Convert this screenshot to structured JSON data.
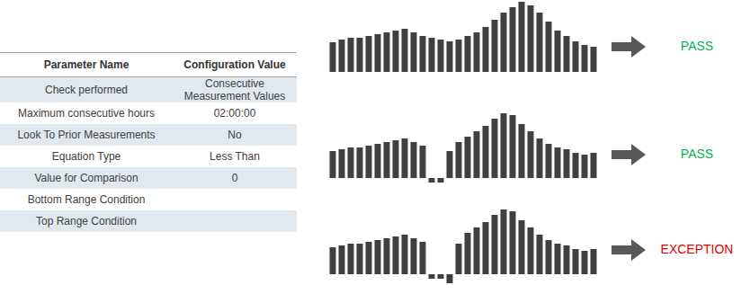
{
  "table": {
    "header": [
      "Parameter Name",
      "Configuration Value"
    ],
    "rows": [
      [
        "Check performed",
        "Consecutive Measurement Values"
      ],
      [
        "Maximum consecutive hours",
        "02:00:00"
      ],
      [
        "Look To Prior Measurements",
        "No"
      ],
      [
        "Equation Type",
        "Less Than"
      ],
      [
        "Value for Comparison",
        "0"
      ],
      [
        "Bottom Range Condition",
        null
      ],
      [
        "Top Range Condition",
        null
      ]
    ]
  },
  "chart_data": [
    {
      "type": "bar",
      "color": "#404040",
      "ylim": [
        -12,
        80
      ],
      "tick_labels": false,
      "grid": false,
      "values": [
        33,
        36,
        38,
        38,
        40,
        42,
        44,
        46,
        48,
        44,
        40,
        38,
        36,
        34,
        36,
        40,
        44,
        50,
        58,
        66,
        72,
        78,
        74,
        66,
        56,
        46,
        40,
        34,
        30,
        28
      ]
    },
    {
      "type": "bar",
      "color": "#404040",
      "ylim": [
        -12,
        80
      ],
      "tick_labels": false,
      "grid": false,
      "values": [
        30,
        32,
        34,
        34,
        36,
        38,
        40,
        42,
        44,
        40,
        36,
        -5,
        -5,
        30,
        40,
        46,
        52,
        58,
        66,
        72,
        70,
        60,
        52,
        44,
        38,
        34,
        32,
        28,
        26,
        28
      ]
    },
    {
      "type": "bar",
      "color": "#404040",
      "ylim": [
        -12,
        80
      ],
      "tick_labels": false,
      "grid": false,
      "values": [
        30,
        32,
        34,
        34,
        36,
        38,
        40,
        42,
        44,
        40,
        36,
        -5,
        -5,
        -10,
        34,
        46,
        52,
        58,
        66,
        72,
        70,
        60,
        52,
        44,
        38,
        34,
        32,
        28,
        26,
        28
      ]
    }
  ],
  "results": [
    {
      "text": "PASS",
      "color": "#00b050"
    },
    {
      "text": "PASS",
      "color": "#00b050"
    },
    {
      "text": "EXCEPTION",
      "color": "#e00000"
    }
  ]
}
